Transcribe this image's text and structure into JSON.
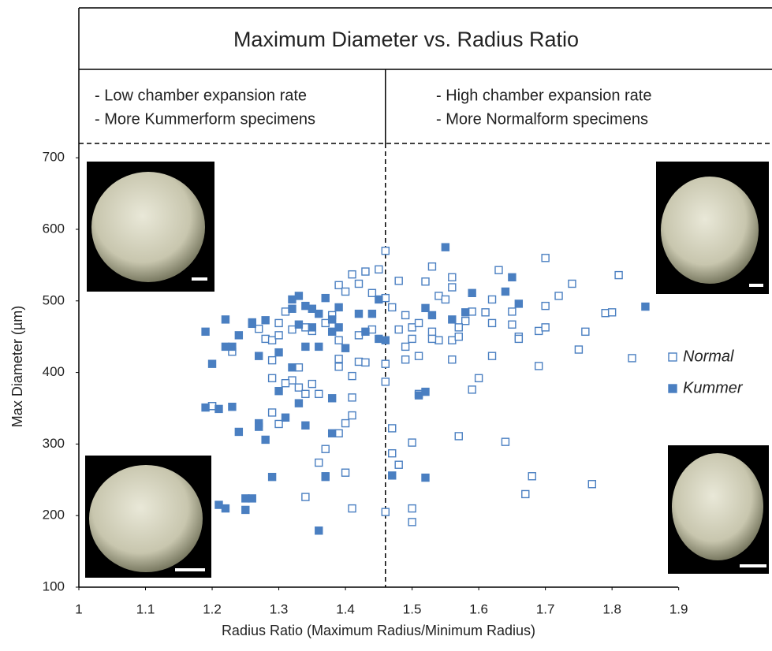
{
  "chart_data": {
    "type": "scatter",
    "title": "Maximum Diameter vs. Radius Ratio",
    "annotations_left": [
      "- Low chamber expansion rate",
      "- More Kummerform specimens"
    ],
    "annotations_right": [
      "- High chamber expansion rate",
      "- More Normalform specimens"
    ],
    "x_label": "Radius Ratio (Maximum Radius/Minimum Radius)",
    "y_label": "Max Diameter (µm)",
    "xlim": [
      1,
      2.04
    ],
    "ylim": [
      100,
      720
    ],
    "xticks": [
      1,
      1.1,
      1.2,
      1.3,
      1.4,
      1.5,
      1.6,
      1.7,
      1.8,
      1.9
    ],
    "yticks": [
      100,
      200,
      300,
      400,
      500,
      600,
      700
    ],
    "divider_x": 1.46,
    "legend": "right",
    "series": [
      {
        "name": "Normal",
        "color": "#4a7fc1",
        "filled": false,
        "x": [
          1.2,
          1.2,
          1.23,
          1.27,
          1.28,
          1.29,
          1.3,
          1.29,
          1.29,
          1.29,
          1.3,
          1.32,
          1.31,
          1.33,
          1.33,
          1.34,
          1.36,
          1.35,
          1.34,
          1.36,
          1.37,
          1.39,
          1.4,
          1.41,
          1.41,
          1.4,
          1.41,
          1.39,
          1.39,
          1.41,
          1.42,
          1.43,
          1.39,
          1.41,
          1.43,
          1.45,
          1.46,
          1.46,
          1.46,
          1.46,
          1.47,
          1.48,
          1.47,
          1.5,
          1.5,
          1.5,
          1.51,
          1.49,
          1.49,
          1.5,
          1.48,
          1.53,
          1.52,
          1.56,
          1.56,
          1.57,
          1.56,
          1.56,
          1.57,
          1.59,
          1.6,
          1.62,
          1.64,
          1.63,
          1.65,
          1.66,
          1.66,
          1.67,
          1.68,
          1.69,
          1.69,
          1.7,
          1.7,
          1.7,
          1.72,
          1.74,
          1.75,
          1.76,
          1.77,
          1.79,
          1.8,
          1.81,
          1.83,
          1.58,
          1.61,
          1.62,
          1.59,
          1.54,
          1.55,
          1.54,
          1.53,
          1.51,
          1.5,
          1.49,
          1.47,
          1.46,
          1.44,
          1.42,
          1.4,
          1.38,
          1.37,
          1.35,
          1.34,
          1.32,
          1.31,
          1.3,
          1.39,
          1.42,
          1.44,
          1.48,
          1.51,
          1.53,
          1.57,
          1.62,
          1.65
        ],
        "values": [
          353,
          353,
          429,
          461,
          447,
          445,
          452,
          417,
          392,
          344,
          328,
          389,
          385,
          407,
          379,
          370,
          370,
          384,
          226,
          274,
          293,
          315,
          329,
          340,
          365,
          260,
          210,
          408,
          419,
          395,
          415,
          414,
          522,
          537,
          541,
          544,
          570,
          412,
          387,
          205,
          322,
          271,
          287,
          302,
          210,
          191,
          370,
          418,
          436,
          447,
          528,
          548,
          527,
          533,
          519,
          311,
          418,
          445,
          450,
          376,
          392,
          423,
          303,
          543,
          467,
          450,
          447,
          230,
          255,
          409,
          458,
          463,
          560,
          493,
          507,
          524,
          432,
          457,
          244,
          483,
          484,
          536,
          420,
          472,
          484,
          502,
          485,
          507,
          502,
          445,
          447,
          423,
          463,
          480,
          491,
          504,
          511,
          524,
          513,
          480,
          469,
          458,
          463,
          460,
          485,
          469,
          445,
          452,
          460,
          460,
          469,
          457,
          463,
          469,
          485
        ]
      },
      {
        "name": "Kummer",
        "color": "#4a7fc1",
        "filled": true,
        "x": [
          1.19,
          1.2,
          1.19,
          1.21,
          1.23,
          1.21,
          1.22,
          1.22,
          1.22,
          1.23,
          1.24,
          1.24,
          1.25,
          1.26,
          1.25,
          1.26,
          1.26,
          1.27,
          1.27,
          1.27,
          1.28,
          1.28,
          1.29,
          1.3,
          1.3,
          1.31,
          1.32,
          1.33,
          1.33,
          1.34,
          1.34,
          1.34,
          1.35,
          1.36,
          1.36,
          1.37,
          1.37,
          1.36,
          1.37,
          1.38,
          1.38,
          1.38,
          1.39,
          1.4,
          1.42,
          1.43,
          1.44,
          1.45,
          1.45,
          1.46,
          1.47,
          1.52,
          1.51,
          1.52,
          1.55,
          1.56,
          1.53,
          1.58,
          1.59,
          1.64,
          1.66,
          1.65,
          1.85,
          1.32,
          1.33,
          1.35,
          1.38,
          1.39,
          1.32,
          1.52
        ],
        "values": [
          457,
          412,
          351,
          349,
          352,
          215,
          210,
          474,
          436,
          436,
          452,
          317,
          224,
          224,
          208,
          468,
          470,
          423,
          329,
          324,
          306,
          473,
          254,
          374,
          428,
          337,
          502,
          507,
          357,
          493,
          326,
          436,
          463,
          482,
          179,
          254,
          255,
          436,
          504,
          364,
          457,
          315,
          491,
          434,
          482,
          457,
          482,
          447,
          502,
          445,
          256,
          373,
          368,
          253,
          575,
          474,
          480,
          484,
          511,
          513,
          496,
          533,
          492,
          489,
          467,
          489,
          474,
          463,
          407,
          490
        ]
      }
    ]
  }
}
